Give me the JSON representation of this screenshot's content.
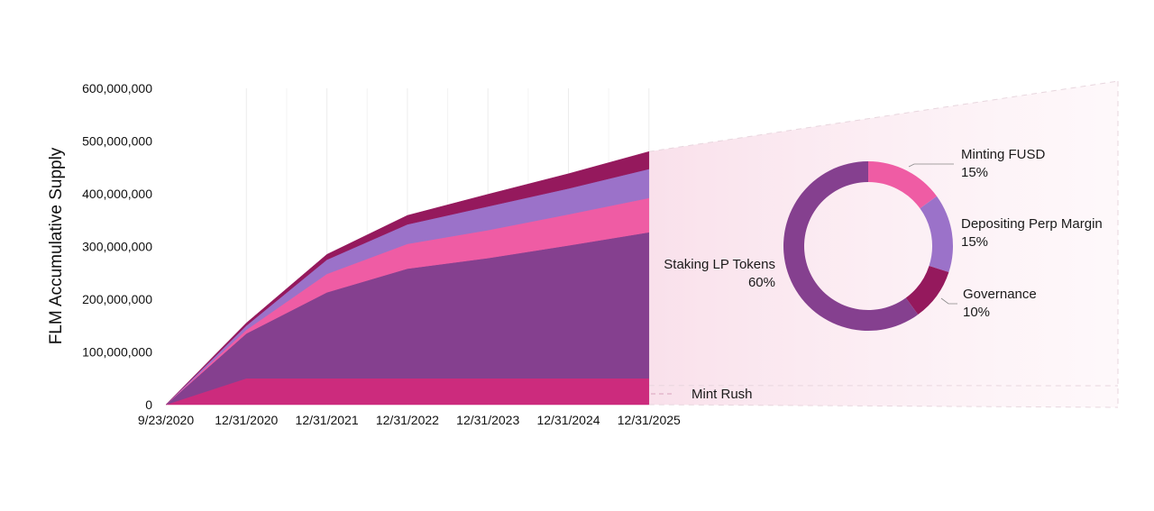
{
  "chart_data": [
    {
      "type": "area",
      "stacked": true,
      "ylabel": "FLM Accumulative Supply",
      "ylim": [
        0,
        600000000
      ],
      "y_ticks": [
        0,
        100000000,
        200000000,
        300000000,
        400000000,
        500000000,
        600000000
      ],
      "y_tick_labels": [
        "0",
        "100,000,000",
        "200,000,000",
        "300,000,000",
        "400,000,000",
        "500,000,000",
        "600,000,000"
      ],
      "x": [
        "9/23/2020",
        "12/31/2020",
        "12/31/2021",
        "12/31/2022",
        "12/31/2023",
        "12/31/2024",
        "12/31/2025"
      ],
      "x_tick_labels": [
        "9/23/2020",
        "12/31/2020",
        "12/31/2021",
        "12/31/2022",
        "12/31/2023",
        "12/31/2024",
        "12/31/2025"
      ],
      "grid": "vertical",
      "series": [
        {
          "name": "Mint Rush",
          "color": "#cc2b7d",
          "values": [
            0,
            50000000,
            50000000,
            50000000,
            50000000,
            50000000,
            50000000
          ]
        },
        {
          "name": "Staking LP Tokens",
          "color": "#85408f",
          "values": [
            0,
            85000000,
            163000000,
            208000000,
            228000000,
            252000000,
            277000000
          ]
        },
        {
          "name": "Minting FUSD",
          "color": "#ef5ca4",
          "values": [
            0,
            7000000,
            35000000,
            47000000,
            53000000,
            59000000,
            65000000
          ]
        },
        {
          "name": "Depositing Perp Margin",
          "color": "#9b72c9",
          "values": [
            0,
            8000000,
            27000000,
            37000000,
            45000000,
            49000000,
            55000000
          ]
        },
        {
          "name": "Governance",
          "color": "#95195d",
          "values": [
            0,
            5000000,
            10000000,
            17000000,
            23000000,
            28000000,
            33000000
          ]
        }
      ]
    },
    {
      "type": "pie",
      "donut": true,
      "labels": [
        "Minting FUSD",
        "Depositing Perp Margin",
        "Governance",
        "Staking LP Tokens"
      ],
      "values": [
        15,
        15,
        10,
        60
      ],
      "value_labels": [
        "15%",
        "15%",
        "10%",
        "60%"
      ],
      "colors": [
        "#ef5ca4",
        "#9b72c9",
        "#95195d",
        "#85408f"
      ]
    }
  ],
  "annotations": {
    "mint_rush": "Mint Rush"
  }
}
